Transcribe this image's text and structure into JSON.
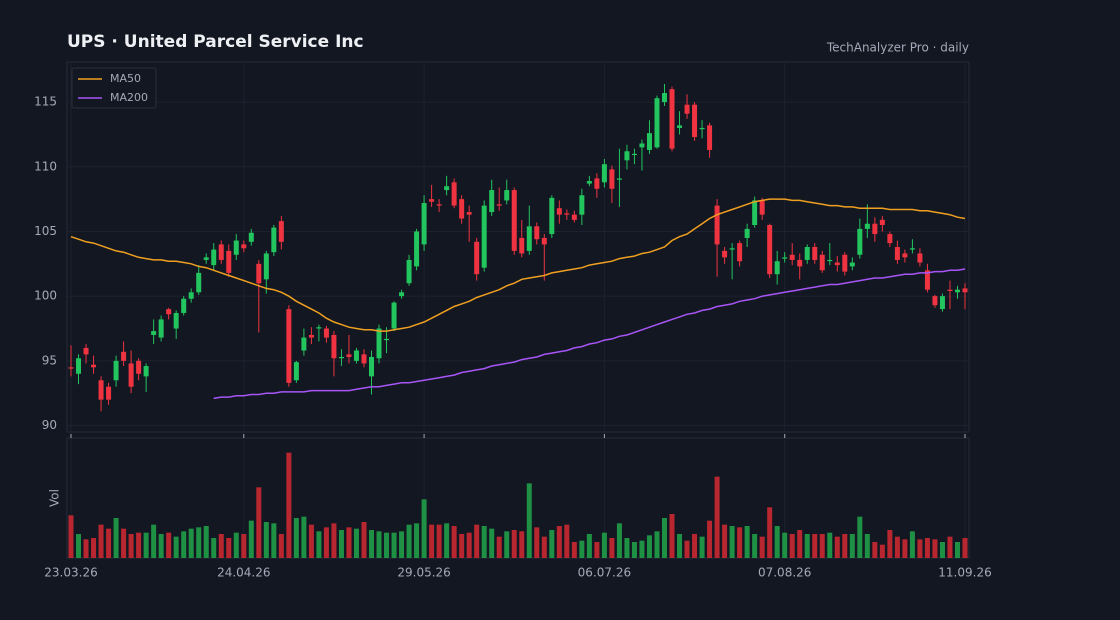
{
  "chart_data": {
    "type": "candlestick",
    "title": "UPS  ·  United Parcel Service Inc",
    "subtitle": "TechAnalyzer Pro · daily",
    "volume_label": "Vol",
    "up_color": "#22c55e",
    "down_color": "#ef3340",
    "volume_up_color": "#1f9145",
    "volume_down_color": "#b8262f",
    "grid": true,
    "legend": "upper left",
    "x": [
      "23.03.26",
      "24.03.26",
      "25.03.26",
      "26.03.26",
      "27.03.26",
      "30.03.26",
      "31.03.26",
      "01.04.26",
      "02.04.26",
      "06.04.26",
      "07.04.26",
      "08.04.26",
      "09.04.26",
      "10.04.26",
      "13.04.26",
      "14.04.26",
      "15.04.26",
      "16.04.26",
      "17.04.26",
      "20.04.26",
      "21.04.26",
      "22.04.26",
      "23.04.26",
      "24.04.26",
      "27.04.26",
      "28.04.26",
      "29.04.26",
      "30.04.26",
      "01.05.26",
      "04.05.26",
      "05.05.26",
      "06.05.26",
      "07.05.26",
      "08.05.26",
      "11.05.26",
      "12.05.26",
      "13.05.26",
      "14.05.26",
      "15.05.26",
      "18.05.26",
      "19.05.26",
      "20.05.26",
      "21.05.26",
      "22.05.26",
      "26.05.26",
      "27.05.26",
      "28.05.26",
      "29.05.26",
      "01.06.26",
      "02.06.26",
      "03.06.26",
      "04.06.26",
      "05.06.26",
      "08.06.26",
      "09.06.26",
      "10.06.26",
      "11.06.26",
      "12.06.26",
      "15.06.26",
      "16.06.26",
      "17.06.26",
      "18.06.26",
      "22.06.26",
      "23.06.26",
      "24.06.26",
      "25.06.26",
      "26.06.26",
      "29.06.26",
      "30.06.26",
      "01.07.26",
      "02.07.26",
      "06.07.26",
      "07.07.26",
      "08.07.26",
      "09.07.26",
      "10.07.26",
      "13.07.26",
      "14.07.26",
      "15.07.26",
      "16.07.26",
      "17.07.26",
      "20.07.26",
      "21.07.26",
      "22.07.26",
      "23.07.26",
      "24.07.26",
      "27.07.26",
      "28.07.26",
      "29.07.26",
      "30.07.26",
      "31.07.26",
      "03.08.26",
      "04.08.26",
      "05.08.26",
      "06.08.26",
      "07.08.26",
      "10.08.26",
      "11.08.26",
      "12.08.26",
      "13.08.26",
      "14.08.26",
      "17.08.26",
      "18.08.26",
      "19.08.26",
      "20.08.26",
      "21.08.26",
      "24.08.26",
      "25.08.26",
      "26.08.26",
      "27.08.26",
      "28.08.26",
      "31.08.26",
      "01.09.26",
      "02.09.26",
      "03.09.26",
      "04.09.26",
      "08.09.26",
      "09.09.26",
      "10.09.26",
      "11.09.26"
    ],
    "xticks": [
      "23.03.26",
      "24.04.26",
      "29.05.26",
      "06.07.26",
      "07.08.26",
      "11.09.26"
    ],
    "open": [
      94.5,
      94.0,
      96.0,
      94.7,
      93.5,
      93.0,
      93.5,
      95.7,
      94.8,
      95.0,
      93.8,
      97.0,
      96.8,
      99.0,
      97.5,
      98.7,
      99.8,
      100.3,
      102.8,
      102.4,
      104.0,
      103.5,
      103.2,
      104.0,
      104.2,
      102.5,
      101.3,
      103.4,
      105.8,
      99.0,
      93.5,
      95.8,
      97.0,
      97.5,
      97.5,
      97.0,
      95.2,
      95.5,
      95.0,
      95.5,
      93.8,
      95.2,
      96.6,
      97.5,
      100.0,
      101.0,
      102.3,
      104.0,
      107.5,
      107.1,
      108.2,
      108.8,
      107.5,
      106.5,
      104.2,
      102.2,
      106.5,
      107.1,
      107.4,
      108.2,
      104.5,
      103.5,
      105.4,
      104.5,
      104.8,
      106.8,
      106.4,
      106.3,
      106.3,
      108.7,
      109.1,
      108.8,
      109.8,
      109.0,
      110.5,
      111.0,
      111.5,
      111.3,
      111.5,
      115.0,
      116.0,
      113.0,
      114.8,
      114.8,
      113.0,
      113.2,
      107.0,
      103.5,
      103.6,
      104.1,
      104.5,
      105.5,
      107.4,
      105.5,
      101.7,
      102.9,
      103.2,
      102.8,
      102.8,
      103.8,
      103.2,
      102.8,
      102.6,
      103.2,
      102.3,
      103.2,
      105.2,
      105.6,
      105.9,
      104.8,
      103.8,
      103.3,
      103.6,
      103.3,
      102.0,
      100.0,
      99.0,
      100.5,
      100.3,
      100.6
    ],
    "high": [
      96.2,
      95.5,
      96.3,
      95.4,
      93.8,
      93.3,
      95.4,
      96.5,
      95.8,
      95.2,
      94.8,
      98.2,
      98.5,
      99.1,
      98.9,
      100.0,
      100.6,
      102.4,
      103.3,
      104.1,
      104.3,
      104.0,
      104.8,
      104.3,
      105.2,
      102.8,
      103.5,
      105.5,
      106.2,
      99.3,
      95.0,
      97.5,
      97.6,
      97.8,
      97.7,
      97.3,
      95.9,
      97.0,
      96.0,
      95.9,
      95.8,
      97.8,
      97.6,
      99.6,
      100.5,
      103.2,
      105.2,
      107.8,
      108.6,
      107.5,
      109.3,
      109.1,
      107.8,
      107.0,
      104.5,
      107.4,
      109.0,
      108.4,
      109.0,
      108.4,
      105.9,
      107.0,
      105.7,
      104.8,
      107.8,
      107.4,
      106.7,
      106.6,
      108.3,
      109.3,
      109.5,
      110.6,
      110.1,
      111.4,
      111.7,
      111.4,
      112.1,
      113.6,
      115.5,
      116.4,
      116.2,
      114.3,
      115.6,
      115.0,
      113.6,
      113.4,
      107.5,
      103.8,
      104.1,
      104.3,
      105.6,
      107.7,
      107.6,
      105.6,
      103.5,
      103.4,
      104.1,
      103.3,
      104.0,
      104.1,
      103.5,
      104.1,
      103.1,
      103.4,
      103.0,
      106.0,
      107.1,
      106.1,
      106.2,
      105.0,
      104.3,
      103.6,
      104.4,
      103.7,
      102.5,
      100.1,
      100.2,
      101.2,
      100.8,
      101.0
    ],
    "low": [
      93.8,
      93.2,
      94.8,
      94.0,
      91.1,
      91.6,
      93.0,
      94.6,
      92.5,
      93.5,
      92.6,
      96.3,
      96.5,
      98.2,
      96.7,
      98.5,
      99.5,
      100.1,
      102.5,
      102.0,
      102.5,
      101.5,
      102.8,
      103.4,
      103.9,
      97.2,
      100.2,
      103.1,
      103.6,
      93.0,
      93.3,
      95.4,
      96.3,
      96.5,
      96.4,
      93.8,
      94.6,
      94.8,
      94.8,
      94.5,
      92.4,
      94.8,
      95.6,
      97.3,
      99.8,
      100.8,
      102.0,
      103.5,
      106.9,
      106.5,
      107.8,
      106.8,
      105.6,
      104.2,
      101.2,
      101.9,
      106.2,
      106.6,
      107.1,
      103.2,
      103.0,
      103.2,
      104.0,
      101.2,
      104.5,
      105.6,
      105.9,
      105.7,
      105.5,
      108.5,
      107.6,
      108.4,
      107.2,
      106.9,
      109.8,
      110.2,
      109.7,
      111.0,
      111.4,
      114.7,
      111.2,
      112.5,
      113.7,
      112.0,
      112.2,
      110.7,
      101.5,
      102.5,
      101.3,
      102.3,
      103.8,
      105.3,
      105.9,
      101.4,
      100.9,
      102.6,
      102.4,
      101.3,
      102.5,
      102.5,
      101.8,
      102.4,
      101.9,
      101.6,
      102.0,
      102.9,
      104.5,
      104.2,
      105.0,
      103.8,
      102.5,
      102.6,
      103.3,
      102.3,
      100.3,
      99.1,
      98.8,
      99.0,
      99.8,
      99.0
    ],
    "close": [
      94.4,
      95.2,
      95.5,
      94.5,
      92.0,
      92.0,
      95.0,
      95.0,
      93.0,
      94.0,
      94.6,
      97.3,
      98.2,
      98.6,
      98.7,
      99.8,
      100.3,
      101.8,
      103.0,
      103.6,
      102.8,
      101.8,
      104.3,
      103.7,
      104.9,
      101.0,
      103.3,
      105.3,
      104.2,
      93.3,
      94.9,
      96.8,
      96.8,
      97.6,
      96.8,
      95.2,
      95.3,
      95.3,
      95.8,
      94.8,
      95.3,
      97.5,
      96.7,
      99.5,
      100.3,
      102.8,
      105.0,
      107.2,
      107.3,
      107.0,
      108.5,
      107.0,
      106.0,
      106.3,
      101.7,
      107.0,
      108.2,
      107.0,
      108.2,
      103.5,
      103.3,
      105.4,
      104.4,
      104.0,
      107.6,
      106.3,
      106.3,
      105.9,
      107.8,
      108.9,
      108.3,
      110.2,
      108.3,
      109.1,
      111.2,
      111.0,
      111.8,
      112.6,
      115.3,
      115.7,
      111.4,
      113.2,
      114.1,
      112.3,
      113.0,
      111.3,
      104.0,
      103.0,
      103.7,
      102.7,
      105.2,
      107.4,
      106.3,
      101.7,
      102.7,
      103.0,
      102.8,
      102.3,
      103.8,
      102.8,
      102.0,
      102.8,
      102.4,
      101.9,
      102.6,
      105.2,
      105.6,
      104.8,
      105.5,
      104.1,
      102.8,
      103.0,
      103.7,
      102.6,
      100.5,
      99.3,
      100.0,
      100.4,
      100.5,
      100.3
    ],
    "volume": [
      3.2,
      1.8,
      1.4,
      1.5,
      2.5,
      2.2,
      3.0,
      2.2,
      1.8,
      1.9,
      1.9,
      2.5,
      1.8,
      1.9,
      1.6,
      2.0,
      2.2,
      2.3,
      2.4,
      1.5,
      1.8,
      1.5,
      1.9,
      1.8,
      2.8,
      5.3,
      2.7,
      2.6,
      1.8,
      7.9,
      3.0,
      3.1,
      2.5,
      2.0,
      2.3,
      2.6,
      2.1,
      2.3,
      2.2,
      2.7,
      2.1,
      2.0,
      1.9,
      1.9,
      2.0,
      2.5,
      2.6,
      4.4,
      2.5,
      2.5,
      2.6,
      2.4,
      1.8,
      1.9,
      2.5,
      2.4,
      2.2,
      1.6,
      2.0,
      2.1,
      2.0,
      5.6,
      2.3,
      1.6,
      2.1,
      2.4,
      2.5,
      1.2,
      1.3,
      1.8,
      1.2,
      1.9,
      1.5,
      2.6,
      1.5,
      1.2,
      1.3,
      1.7,
      2.0,
      3.0,
      3.3,
      1.8,
      1.3,
      1.8,
      1.6,
      2.8,
      6.1,
      2.5,
      2.4,
      2.3,
      2.4,
      1.8,
      1.6,
      3.8,
      2.4,
      1.9,
      1.8,
      2.1,
      1.8,
      1.8,
      1.8,
      1.9,
      1.6,
      1.8,
      1.8,
      3.1,
      1.8,
      1.2,
      1.0,
      2.1,
      1.6,
      1.4,
      2.0,
      1.4,
      1.5,
      1.4,
      1.2,
      1.6,
      1.2,
      1.5
    ],
    "series": [
      {
        "name": "MA50",
        "color": "#f0a020",
        "values": [
          104.6,
          104.4,
          104.2,
          104.1,
          103.9,
          103.7,
          103.5,
          103.4,
          103.2,
          103.0,
          102.9,
          102.8,
          102.8,
          102.7,
          102.7,
          102.6,
          102.5,
          102.3,
          102.2,
          102.0,
          101.8,
          101.6,
          101.4,
          101.2,
          101.0,
          100.8,
          100.6,
          100.5,
          100.3,
          100.0,
          99.6,
          99.3,
          99.0,
          98.7,
          98.3,
          98.0,
          97.8,
          97.6,
          97.5,
          97.4,
          97.4,
          97.3,
          97.3,
          97.4,
          97.5,
          97.6,
          97.8,
          98.0,
          98.3,
          98.6,
          98.9,
          99.2,
          99.4,
          99.6,
          99.9,
          100.1,
          100.3,
          100.5,
          100.8,
          101.0,
          101.3,
          101.4,
          101.5,
          101.6,
          101.8,
          101.9,
          102.0,
          102.1,
          102.2,
          102.4,
          102.5,
          102.6,
          102.7,
          102.9,
          103.0,
          103.1,
          103.3,
          103.4,
          103.6,
          103.8,
          104.3,
          104.6,
          104.8,
          105.2,
          105.6,
          106.0,
          106.3,
          106.5,
          106.7,
          106.9,
          107.1,
          107.3,
          107.4,
          107.5,
          107.5,
          107.5,
          107.4,
          107.4,
          107.3,
          107.2,
          107.1,
          107.0,
          107.0,
          106.9,
          106.9,
          106.8,
          106.8,
          106.8,
          106.8,
          106.7,
          106.7,
          106.7,
          106.7,
          106.6,
          106.6,
          106.5,
          106.4,
          106.3,
          106.1,
          106.0
        ]
      },
      {
        "name": "MA200",
        "color": "#a855f7",
        "values": [
          null,
          null,
          null,
          null,
          null,
          null,
          null,
          null,
          null,
          null,
          null,
          null,
          null,
          null,
          null,
          null,
          null,
          null,
          null,
          92.1,
          92.2,
          92.2,
          92.3,
          92.3,
          92.4,
          92.4,
          92.5,
          92.5,
          92.6,
          92.6,
          92.6,
          92.6,
          92.7,
          92.7,
          92.7,
          92.7,
          92.7,
          92.7,
          92.8,
          92.9,
          93.0,
          93.0,
          93.1,
          93.2,
          93.3,
          93.3,
          93.4,
          93.5,
          93.6,
          93.7,
          93.8,
          93.9,
          94.1,
          94.2,
          94.3,
          94.4,
          94.6,
          94.7,
          94.8,
          94.9,
          95.1,
          95.2,
          95.3,
          95.5,
          95.6,
          95.7,
          95.8,
          96.0,
          96.1,
          96.3,
          96.4,
          96.6,
          96.7,
          96.9,
          97.0,
          97.2,
          97.4,
          97.6,
          97.8,
          98.0,
          98.2,
          98.4,
          98.6,
          98.7,
          98.9,
          99.0,
          99.2,
          99.3,
          99.4,
          99.6,
          99.7,
          99.8,
          100.0,
          100.1,
          100.2,
          100.3,
          100.4,
          100.5,
          100.6,
          100.7,
          100.8,
          100.9,
          100.9,
          101.0,
          101.1,
          101.2,
          101.3,
          101.4,
          101.4,
          101.5,
          101.6,
          101.7,
          101.7,
          101.8,
          101.8,
          101.9,
          101.9,
          102.0,
          102.0,
          102.1
        ]
      }
    ],
    "ylim": [
      89.5,
      118.1
    ],
    "yticks": [
      90,
      95,
      100,
      105,
      110,
      115
    ],
    "volume_ylim": [
      0,
      9
    ]
  }
}
